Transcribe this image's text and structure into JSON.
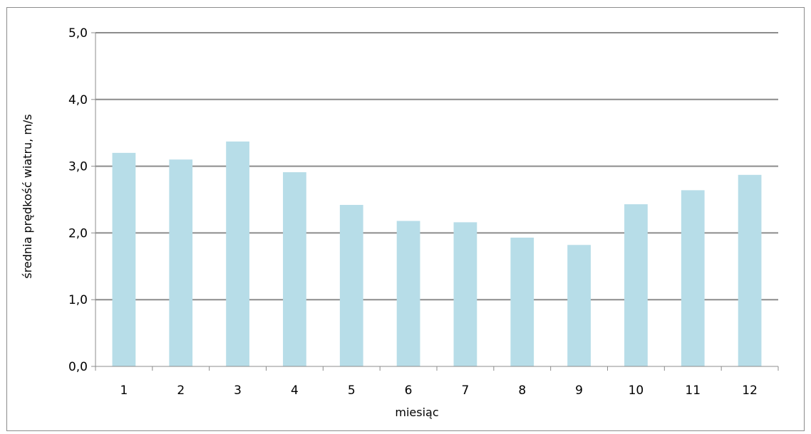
{
  "chart_data": {
    "type": "bar",
    "title": "",
    "xlabel": "miesiąc",
    "ylabel": "średnia prędkość wiatru, m/s",
    "categories": [
      "1",
      "2",
      "3",
      "4",
      "5",
      "6",
      "7",
      "8",
      "9",
      "10",
      "11",
      "12"
    ],
    "values": [
      3.2,
      3.1,
      3.37,
      2.91,
      2.42,
      2.18,
      2.16,
      1.93,
      1.82,
      2.43,
      2.64,
      2.87
    ],
    "ylim": [
      0,
      5
    ],
    "yticks": [
      0,
      1,
      2,
      3,
      4,
      5
    ],
    "ytick_labels": [
      "0,0",
      "1,0",
      "2,0",
      "3,0",
      "4,0",
      "5,0"
    ],
    "grid": true,
    "legend": "none",
    "colors": {
      "bar": "#b7dde8",
      "grid": "#8c8c8c",
      "axis": "#8c8c8c",
      "frame": "#8c8c8c"
    }
  }
}
